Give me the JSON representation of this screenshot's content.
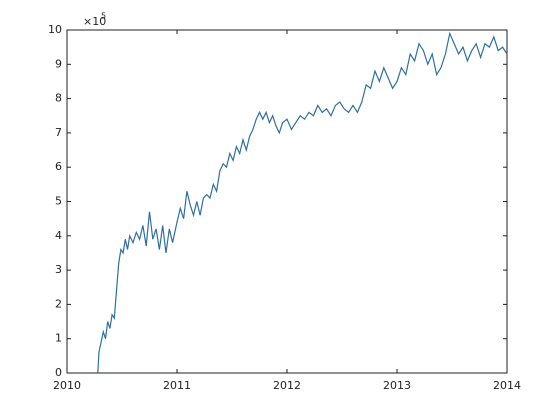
{
  "chart_data": {
    "type": "line",
    "y_multiplier": "×10",
    "y_multiplier_exponent": "5",
    "xlim": [
      2010,
      2014
    ],
    "xticks": [
      2010,
      2011,
      2012,
      2013,
      2014
    ],
    "ylim": [
      0,
      10
    ],
    "yticks": [
      0,
      1,
      2,
      3,
      4,
      5,
      6,
      7,
      8,
      9,
      10
    ],
    "color": "#2f6f9f",
    "x": [
      2010.28,
      2010.29,
      2010.31,
      2010.33,
      2010.35,
      2010.37,
      2010.39,
      2010.41,
      2010.43,
      2010.45,
      2010.47,
      2010.49,
      2010.51,
      2010.53,
      2010.55,
      2010.57,
      2010.6,
      2010.63,
      2010.66,
      2010.69,
      2010.72,
      2010.75,
      2010.78,
      2010.81,
      2010.84,
      2010.87,
      2010.9,
      2010.93,
      2010.96,
      2011.0,
      2011.03,
      2011.06,
      2011.09,
      2011.12,
      2011.15,
      2011.18,
      2011.21,
      2011.24,
      2011.27,
      2011.3,
      2011.33,
      2011.36,
      2011.39,
      2011.42,
      2011.45,
      2011.48,
      2011.51,
      2011.54,
      2011.57,
      2011.6,
      2011.63,
      2011.66,
      2011.69,
      2011.72,
      2011.75,
      2011.78,
      2011.81,
      2011.84,
      2011.87,
      2011.9,
      2011.93,
      2011.96,
      2012.0,
      2012.04,
      2012.08,
      2012.12,
      2012.16,
      2012.2,
      2012.24,
      2012.28,
      2012.32,
      2012.36,
      2012.4,
      2012.44,
      2012.48,
      2012.52,
      2012.56,
      2012.6,
      2012.64,
      2012.68,
      2012.72,
      2012.76,
      2012.8,
      2012.84,
      2012.88,
      2012.92,
      2012.96,
      2013.0,
      2013.04,
      2013.08,
      2013.12,
      2013.16,
      2013.2,
      2013.24,
      2013.28,
      2013.32,
      2013.36,
      2013.4,
      2013.44,
      2013.48,
      2013.52,
      2013.56,
      2013.6,
      2013.64,
      2013.68,
      2013.72,
      2013.76,
      2013.8,
      2013.84,
      2013.88,
      2013.92,
      2013.96,
      2014.0
    ],
    "values": [
      0.0,
      0.6,
      0.9,
      1.2,
      1.0,
      1.5,
      1.3,
      1.7,
      1.6,
      2.4,
      3.2,
      3.6,
      3.5,
      3.9,
      3.6,
      4.0,
      3.8,
      4.1,
      3.9,
      4.3,
      3.7,
      4.7,
      3.9,
      4.2,
      3.6,
      4.3,
      3.5,
      4.2,
      3.8,
      4.4,
      4.8,
      4.5,
      5.3,
      4.9,
      4.6,
      5.0,
      4.6,
      5.1,
      5.2,
      5.1,
      5.5,
      5.3,
      5.9,
      6.1,
      6.0,
      6.4,
      6.2,
      6.6,
      6.4,
      6.8,
      6.5,
      6.9,
      7.1,
      7.4,
      7.6,
      7.4,
      7.6,
      7.3,
      7.5,
      7.2,
      7.0,
      7.3,
      7.4,
      7.1,
      7.3,
      7.5,
      7.4,
      7.6,
      7.5,
      7.8,
      7.6,
      7.7,
      7.5,
      7.8,
      7.9,
      7.7,
      7.6,
      7.8,
      7.6,
      7.9,
      8.4,
      8.3,
      8.8,
      8.5,
      8.9,
      8.6,
      8.3,
      8.5,
      8.9,
      8.7,
      9.3,
      9.1,
      9.6,
      9.4,
      9.0,
      9.3,
      8.7,
      8.9,
      9.3,
      9.9,
      9.6,
      9.3,
      9.5,
      9.1,
      9.4,
      9.6,
      9.2,
      9.6,
      9.5,
      9.8,
      9.4,
      9.5,
      9.3
    ]
  }
}
